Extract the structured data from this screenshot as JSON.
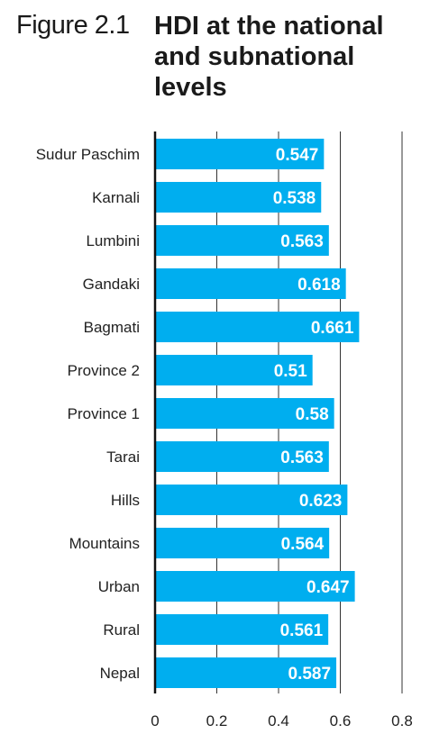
{
  "figure": {
    "label": "Figure 2.1",
    "title": "HDI at the national and subnational levels"
  },
  "colors": {
    "bar": "#00aeef",
    "grid": "#333333",
    "value_text": "#ffffff"
  },
  "chart_data": {
    "type": "bar",
    "orientation": "horizontal",
    "title": "HDI at the national and subnational levels",
    "xlabel": "",
    "ylabel": "",
    "xlim": [
      0,
      0.8
    ],
    "x_ticks": [
      "0",
      "0.2",
      "0.4",
      "0.6",
      "0.8"
    ],
    "grid": true,
    "categories": [
      "Sudur Paschim",
      "Karnali",
      "Lumbini",
      "Gandaki",
      "Bagmati",
      "Province 2",
      "Province 1",
      "Tarai",
      "Hills",
      "Mountains",
      "Urban",
      "Rural",
      "Nepal"
    ],
    "values": [
      0.547,
      0.538,
      0.563,
      0.618,
      0.661,
      0.51,
      0.58,
      0.563,
      0.623,
      0.564,
      0.647,
      0.561,
      0.587
    ],
    "value_labels": [
      "0.547",
      "0.538",
      "0.563",
      "0.618",
      "0.661",
      "0.51",
      "0.58",
      "0.563",
      "0.623",
      "0.564",
      "0.647",
      "0.561",
      "0.587"
    ]
  }
}
